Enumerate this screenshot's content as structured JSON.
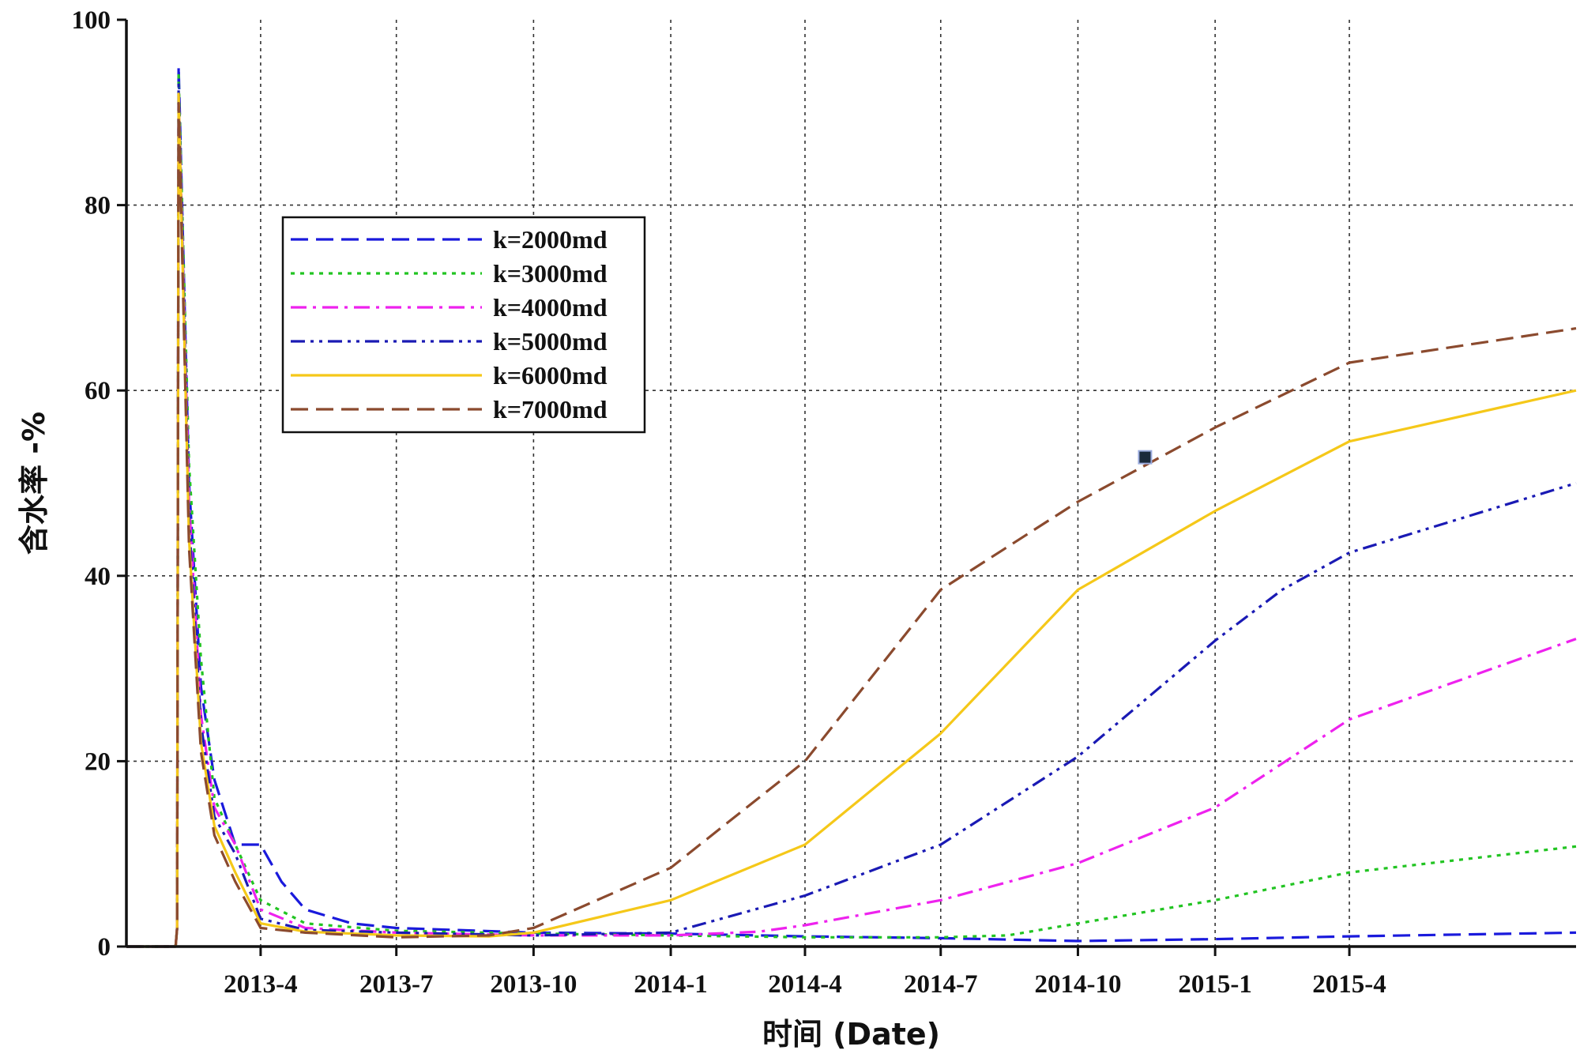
{
  "chart_data": {
    "type": "line",
    "xlabel": "时间 (Date)",
    "ylabel": "含水率 -%",
    "ylim": [
      0,
      100
    ],
    "yticks": [
      "0",
      "20",
      "40",
      "60",
      "80",
      "100"
    ],
    "x_range": [
      "2013-01-01",
      "2015-08-31"
    ],
    "xticks": [
      {
        "date": "2013-04-01",
        "label": "2013-4"
      },
      {
        "date": "2013-07-01",
        "label": "2013-7"
      },
      {
        "date": "2013-10-01",
        "label": "2013-10"
      },
      {
        "date": "2014-01-01",
        "label": "2014-1"
      },
      {
        "date": "2014-04-01",
        "label": "2014-4"
      },
      {
        "date": "2014-07-01",
        "label": "2014-7"
      },
      {
        "date": "2014-10-01",
        "label": "2014-10"
      },
      {
        "date": "2015-01-01",
        "label": "2015-1"
      },
      {
        "date": "2015-04-01",
        "label": "2015-4"
      }
    ],
    "grid": true,
    "legend_position": "top-left",
    "series": [
      {
        "name": "k=2000md",
        "color": "#1a1adc",
        "style": "dashed",
        "points": [
          [
            "2013-01-01",
            0
          ],
          [
            "2013-02-03",
            0
          ],
          [
            "2013-02-04",
            2
          ],
          [
            "2013-02-05",
            95
          ],
          [
            "2013-02-12",
            50
          ],
          [
            "2013-02-20",
            28
          ],
          [
            "2013-03-01",
            18
          ],
          [
            "2013-03-15",
            11
          ],
          [
            "2013-04-01",
            11
          ],
          [
            "2013-04-15",
            7
          ],
          [
            "2013-05-01",
            4
          ],
          [
            "2013-06-01",
            2.5
          ],
          [
            "2013-07-01",
            2
          ],
          [
            "2013-10-01",
            1.5
          ],
          [
            "2014-01-01",
            1.4
          ],
          [
            "2014-04-01",
            1.1
          ],
          [
            "2014-07-01",
            0.9
          ],
          [
            "2014-10-01",
            0.6
          ],
          [
            "2015-01-01",
            0.8
          ],
          [
            "2015-04-01",
            1.1
          ],
          [
            "2015-08-31",
            1.5
          ]
        ]
      },
      {
        "name": "k=3000md",
        "color": "#22c422",
        "style": "dotted",
        "points": [
          [
            "2013-01-01",
            0
          ],
          [
            "2013-02-03",
            0
          ],
          [
            "2013-02-04",
            2
          ],
          [
            "2013-02-05",
            94
          ],
          [
            "2013-02-12",
            52
          ],
          [
            "2013-02-20",
            31
          ],
          [
            "2013-03-01",
            16
          ],
          [
            "2013-03-15",
            11
          ],
          [
            "2013-04-01",
            5
          ],
          [
            "2013-05-01",
            2.5
          ],
          [
            "2013-07-01",
            1.7
          ],
          [
            "2013-10-01",
            1.4
          ],
          [
            "2014-01-01",
            1.2
          ],
          [
            "2014-04-01",
            1
          ],
          [
            "2014-07-01",
            1
          ],
          [
            "2014-08-15",
            1.2
          ],
          [
            "2014-10-01",
            2.5
          ],
          [
            "2015-01-01",
            5
          ],
          [
            "2015-04-01",
            8
          ],
          [
            "2015-08-31",
            10.8
          ]
        ]
      },
      {
        "name": "k=4000md",
        "color": "#ee22ee",
        "style": "dashdot",
        "points": [
          [
            "2013-01-01",
            0
          ],
          [
            "2013-02-03",
            0
          ],
          [
            "2013-02-04",
            2
          ],
          [
            "2013-02-05",
            92
          ],
          [
            "2013-02-12",
            48
          ],
          [
            "2013-02-20",
            25
          ],
          [
            "2013-03-01",
            15
          ],
          [
            "2013-03-15",
            11
          ],
          [
            "2013-04-01",
            4
          ],
          [
            "2013-05-01",
            2
          ],
          [
            "2013-07-01",
            1.5
          ],
          [
            "2013-10-01",
            1.2
          ],
          [
            "2014-01-01",
            1.2
          ],
          [
            "2014-03-01",
            1.6
          ],
          [
            "2014-04-01",
            2.3
          ],
          [
            "2014-07-01",
            5
          ],
          [
            "2014-10-01",
            9
          ],
          [
            "2015-01-01",
            15
          ],
          [
            "2015-04-01",
            24.5
          ],
          [
            "2015-08-31",
            33.2
          ]
        ]
      },
      {
        "name": "k=5000md",
        "color": "#1a1ab4",
        "style": "dashdotdot",
        "points": [
          [
            "2013-01-01",
            0
          ],
          [
            "2013-02-03",
            0
          ],
          [
            "2013-02-04",
            2
          ],
          [
            "2013-02-05",
            93
          ],
          [
            "2013-02-12",
            46
          ],
          [
            "2013-02-20",
            24
          ],
          [
            "2013-03-01",
            14
          ],
          [
            "2013-03-15",
            10
          ],
          [
            "2013-04-01",
            3
          ],
          [
            "2013-05-01",
            1.8
          ],
          [
            "2013-07-01",
            1.5
          ],
          [
            "2013-10-01",
            1.2
          ],
          [
            "2014-01-01",
            1.5
          ],
          [
            "2014-04-01",
            5.5
          ],
          [
            "2014-07-01",
            11
          ],
          [
            "2014-10-01",
            20.5
          ],
          [
            "2015-01-01",
            33
          ],
          [
            "2015-02-15",
            38.5
          ],
          [
            "2015-04-01",
            42.5
          ],
          [
            "2015-08-31",
            50
          ]
        ]
      },
      {
        "name": "k=6000md",
        "color": "#f5c819",
        "style": "solid",
        "points": [
          [
            "2013-01-01",
            0
          ],
          [
            "2013-02-03",
            0
          ],
          [
            "2013-02-04",
            2
          ],
          [
            "2013-02-05",
            92
          ],
          [
            "2013-02-12",
            44
          ],
          [
            "2013-02-20",
            22
          ],
          [
            "2013-03-01",
            13
          ],
          [
            "2013-03-15",
            8
          ],
          [
            "2013-04-01",
            2.5
          ],
          [
            "2013-05-01",
            1.6
          ],
          [
            "2013-07-01",
            1.2
          ],
          [
            "2013-09-01",
            1.1
          ],
          [
            "2013-10-01",
            1.5
          ],
          [
            "2014-01-01",
            5
          ],
          [
            "2014-04-01",
            11
          ],
          [
            "2014-07-01",
            23
          ],
          [
            "2014-10-01",
            38.5
          ],
          [
            "2015-01-01",
            47
          ],
          [
            "2015-04-01",
            54.5
          ],
          [
            "2015-08-31",
            60
          ]
        ]
      },
      {
        "name": "k=7000md",
        "color": "#8b4a2e",
        "style": "dashed",
        "points": [
          [
            "2013-01-01",
            0
          ],
          [
            "2013-02-03",
            0
          ],
          [
            "2013-02-04",
            2
          ],
          [
            "2013-02-05",
            91
          ],
          [
            "2013-02-12",
            43
          ],
          [
            "2013-02-20",
            21
          ],
          [
            "2013-03-01",
            12
          ],
          [
            "2013-03-15",
            7
          ],
          [
            "2013-04-01",
            2
          ],
          [
            "2013-05-01",
            1.5
          ],
          [
            "2013-07-01",
            1
          ],
          [
            "2013-09-01",
            1.2
          ],
          [
            "2013-10-01",
            2
          ],
          [
            "2014-01-01",
            8.5
          ],
          [
            "2014-04-01",
            20
          ],
          [
            "2014-07-01",
            38.5
          ],
          [
            "2014-10-01",
            48
          ],
          [
            "2015-01-01",
            56
          ],
          [
            "2015-04-01",
            63
          ],
          [
            "2015-08-31",
            66.7
          ]
        ]
      }
    ],
    "marker": {
      "date": "2014-11-15",
      "value": 52.8,
      "color": "#1a2a3a"
    }
  }
}
